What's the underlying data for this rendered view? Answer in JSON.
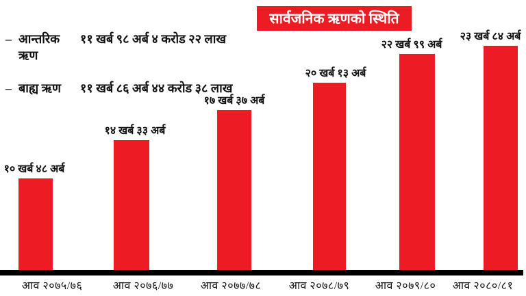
{
  "title": "सार्वजनिक ऋणको स्थिति",
  "legend": {
    "items": [
      {
        "bullet": "–",
        "label": "आन्तरिक ऋण",
        "value": "११ खर्ब ९८ अर्ब ४ करोड २२ लाख"
      },
      {
        "bullet": "–",
        "label": "बाह्य ऋण",
        "value": "११ खर्ब ८६ अर्ब ४४ करोड ३८ लाख"
      }
    ]
  },
  "colors": {
    "bar": "#ED1C24",
    "title_bg": "#ED1C24",
    "title_text": "#FFFFFF",
    "axis": "#000000",
    "text": "#111111",
    "background": "#FFFFFF"
  },
  "chart_data": {
    "type": "bar",
    "title": "सार्वजनिक ऋणको स्थिति",
    "categories": [
      "आव २०७५/७६",
      "आव २०७६/७७",
      "आव २०७७/७८",
      "आव २०७८/७९",
      "आव २०७९/८०",
      "आव २०८०/८१"
    ],
    "values": [
      10.48,
      14.33,
      17.37,
      20.13,
      22.99,
      23.84
    ],
    "value_labels": [
      "१० खर्ब ४८ अर्ब",
      "१४ खर्ब ३३ अर्ब",
      "१७ खर्ब ३७ अर्ब",
      "२० खर्ब १३ अर्ब",
      "२२ खर्ब ९९ अर्ब",
      "२३ खर्ब ८४ अर्ब"
    ],
    "value_unit": "खर्ब",
    "xlabel": "",
    "ylabel": "",
    "ylim": [
      0,
      24.5
    ],
    "grid": false,
    "legend_position": "top-left",
    "bar_color": "#ED1C24"
  }
}
